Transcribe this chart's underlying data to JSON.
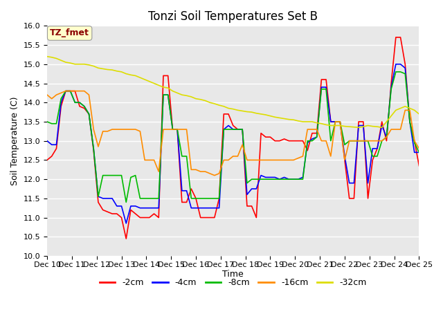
{
  "title": "Tonzi Soil Temperatures Set B",
  "xlabel": "Time",
  "ylabel": "Soil Temperature (C)",
  "ylim": [
    10.0,
    16.0
  ],
  "yticks": [
    10.0,
    10.5,
    11.0,
    11.5,
    12.0,
    12.5,
    13.0,
    13.5,
    14.0,
    14.5,
    15.0,
    15.5,
    16.0
  ],
  "x_labels": [
    "Dec 10",
    "Dec 11",
    "Dec 12",
    "Dec 13",
    "Dec 14",
    "Dec 15",
    "Dec 16",
    "Dec 17",
    "Dec 18",
    "Dec 19",
    "Dec 20",
    "Dec 21",
    "Dec 22",
    "Dec 23",
    "Dec 24",
    "Dec 25"
  ],
  "legend_label": "TZ_fmet",
  "legend_text_color": "#8B0000",
  "legend_box_color": "#FFFFCC",
  "series": {
    "neg2cm": {
      "label": "-2cm",
      "color": "#FF0000",
      "values": [
        12.5,
        12.6,
        12.8,
        13.9,
        14.3,
        14.3,
        14.3,
        13.9,
        13.85,
        13.7,
        12.75,
        11.4,
        11.2,
        11.15,
        11.1,
        11.1,
        11.0,
        10.45,
        11.2,
        11.1,
        11.0,
        11.0,
        11.0,
        11.1,
        11.0,
        14.7,
        14.7,
        13.3,
        13.3,
        11.4,
        11.4,
        11.75,
        11.5,
        11.0,
        11.0,
        11.0,
        11.0,
        11.5,
        13.7,
        13.7,
        13.4,
        13.3,
        13.3,
        11.3,
        11.3,
        11.0,
        13.2,
        13.1,
        13.1,
        13.0,
        13.0,
        13.05,
        13.0,
        13.0,
        13.0,
        13.0,
        12.75,
        13.2,
        13.2,
        14.6,
        14.6,
        13.5,
        13.5,
        13.5,
        12.5,
        11.5,
        11.5,
        13.5,
        13.5,
        11.5,
        12.5,
        12.8,
        13.5,
        13.0,
        14.5,
        15.7,
        15.7,
        15.0,
        13.5,
        13.0,
        12.35
      ]
    },
    "neg4cm": {
      "label": "-4cm",
      "color": "#0000FF",
      "values": [
        13.0,
        12.9,
        12.9,
        14.0,
        14.3,
        14.3,
        14.0,
        14.0,
        13.9,
        13.7,
        12.8,
        11.55,
        11.5,
        11.5,
        11.5,
        11.3,
        11.3,
        10.85,
        11.3,
        11.3,
        11.25,
        11.25,
        11.25,
        11.25,
        11.25,
        14.2,
        14.2,
        13.3,
        13.3,
        11.7,
        11.7,
        11.25,
        11.25,
        11.25,
        11.25,
        11.25,
        11.25,
        11.25,
        13.3,
        13.4,
        13.3,
        13.3,
        13.3,
        11.6,
        11.75,
        11.75,
        12.1,
        12.05,
        12.05,
        12.05,
        12.0,
        12.05,
        12.0,
        12.0,
        12.0,
        12.05,
        12.95,
        13.05,
        13.1,
        14.4,
        14.4,
        13.5,
        13.5,
        13.5,
        12.6,
        11.9,
        11.9,
        13.4,
        13.4,
        11.9,
        12.8,
        12.8,
        13.4,
        13.1,
        14.4,
        15.0,
        15.0,
        14.9,
        13.5,
        12.7,
        12.7
      ]
    },
    "neg8cm": {
      "label": "-8cm",
      "color": "#00BB00",
      "values": [
        13.5,
        13.45,
        13.45,
        14.1,
        14.3,
        14.3,
        14.0,
        14.0,
        13.9,
        13.7,
        12.8,
        11.55,
        12.1,
        12.1,
        12.1,
        12.1,
        12.1,
        11.4,
        12.05,
        12.1,
        11.5,
        11.5,
        11.5,
        11.5,
        11.5,
        14.2,
        14.2,
        13.3,
        13.3,
        12.6,
        12.6,
        11.5,
        11.5,
        11.5,
        11.5,
        11.5,
        11.5,
        11.5,
        13.3,
        13.3,
        13.3,
        13.3,
        13.3,
        11.9,
        12.0,
        12.0,
        12.0,
        12.0,
        12.0,
        12.0,
        12.0,
        12.0,
        12.0,
        12.0,
        12.0,
        12.0,
        13.0,
        13.0,
        13.1,
        14.35,
        14.35,
        13.0,
        13.5,
        13.5,
        12.9,
        13.0,
        13.0,
        13.0,
        13.0,
        13.0,
        12.6,
        12.6,
        13.0,
        13.1,
        14.35,
        14.8,
        14.8,
        14.75,
        13.5,
        12.95,
        12.7
      ]
    },
    "neg16cm": {
      "label": "-16cm",
      "color": "#FF8C00",
      "values": [
        14.2,
        14.1,
        14.2,
        14.25,
        14.3,
        14.3,
        14.3,
        14.3,
        14.3,
        14.2,
        13.3,
        12.85,
        13.25,
        13.25,
        13.3,
        13.3,
        13.3,
        13.3,
        13.3,
        13.3,
        13.25,
        12.5,
        12.5,
        12.5,
        12.2,
        13.3,
        13.3,
        13.3,
        13.3,
        13.3,
        13.3,
        12.25,
        12.25,
        12.2,
        12.2,
        12.15,
        12.1,
        12.15,
        12.5,
        12.5,
        12.6,
        12.6,
        12.9,
        12.5,
        12.5,
        12.5,
        12.5,
        12.5,
        12.5,
        12.5,
        12.5,
        12.5,
        12.5,
        12.5,
        12.55,
        12.6,
        13.3,
        13.3,
        13.3,
        13.0,
        13.0,
        12.6,
        13.5,
        13.5,
        12.5,
        13.0,
        13.0,
        13.0,
        13.0,
        13.0,
        13.0,
        13.0,
        13.0,
        13.1,
        13.3,
        13.3,
        13.3,
        13.8,
        13.8,
        13.0,
        12.8
      ]
    },
    "neg32cm": {
      "label": "-32cm",
      "color": "#DDDD00",
      "values": [
        15.2,
        15.18,
        15.15,
        15.1,
        15.05,
        15.03,
        15.0,
        15.0,
        15.0,
        14.98,
        14.95,
        14.9,
        14.88,
        14.86,
        14.85,
        14.82,
        14.8,
        14.75,
        14.72,
        14.7,
        14.65,
        14.6,
        14.55,
        14.5,
        14.45,
        14.4,
        14.38,
        14.3,
        14.25,
        14.2,
        14.18,
        14.15,
        14.1,
        14.08,
        14.05,
        14.0,
        13.97,
        13.93,
        13.9,
        13.85,
        13.83,
        13.8,
        13.78,
        13.76,
        13.75,
        13.72,
        13.7,
        13.68,
        13.65,
        13.62,
        13.6,
        13.58,
        13.56,
        13.55,
        13.52,
        13.5,
        13.5,
        13.5,
        13.47,
        13.45,
        13.42,
        13.4,
        13.4,
        13.4,
        13.38,
        13.37,
        13.36,
        13.35,
        13.37,
        13.4,
        13.38,
        13.37,
        13.35,
        13.5,
        13.65,
        13.8,
        13.85,
        13.9,
        13.85,
        13.8,
        13.7
      ]
    }
  },
  "plot_background": "#E8E8E8",
  "grid_color": "#FFFFFF",
  "title_fontsize": 12,
  "axis_fontsize": 9,
  "tick_fontsize": 8
}
